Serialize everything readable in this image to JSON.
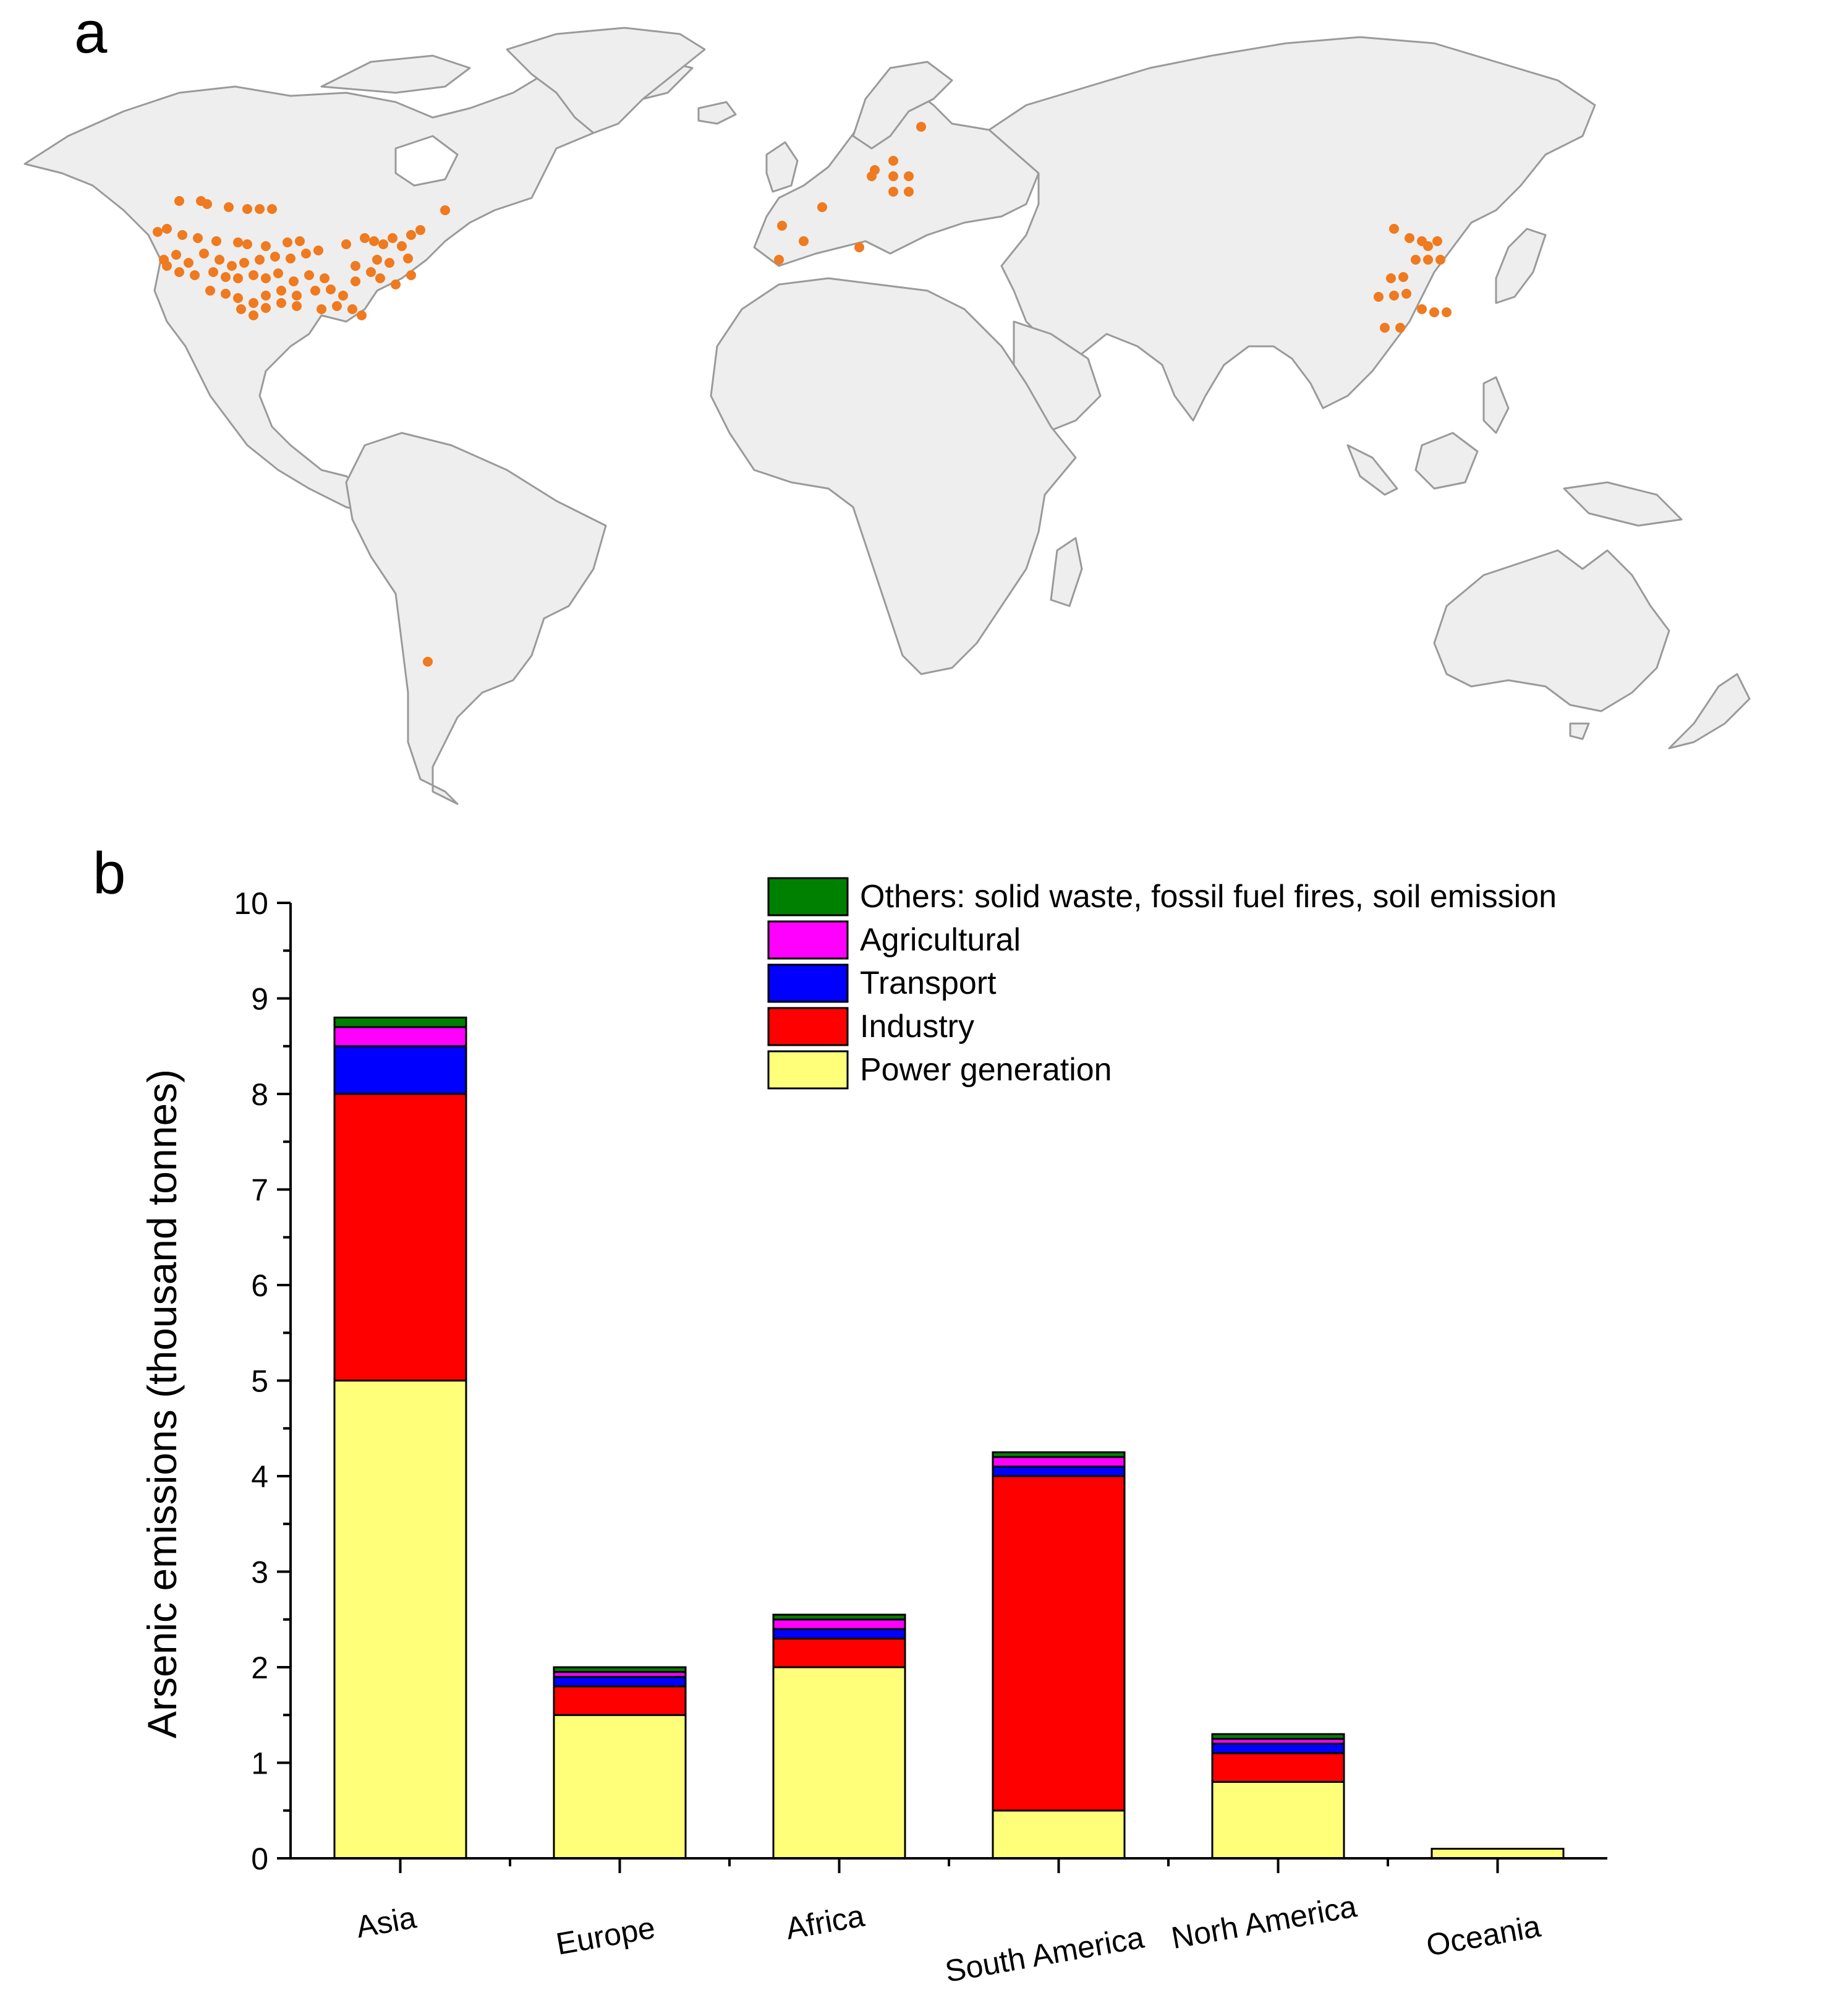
{
  "panels": {
    "a": "a",
    "b": "b"
  },
  "map": {
    "land_color": "#eeeeee",
    "border_color": "#9a9a9a",
    "site_color": "#ef7a1f",
    "site_regions": [
      "North America",
      "Europe",
      "China",
      "South America"
    ]
  },
  "chart_data": {
    "type": "bar",
    "stacked": true,
    "title": "",
    "xlabel": "",
    "ylabel": "Arsenic emissions (thousand tonnes)",
    "ylim": [
      0,
      10
    ],
    "yticks": [
      "0",
      "1",
      "2",
      "3",
      "4",
      "5",
      "6",
      "7",
      "8",
      "9",
      "10"
    ],
    "categories": [
      "Asia",
      "Europe",
      "Africa",
      "South America",
      "Norh America",
      "Oceania"
    ],
    "series": [
      {
        "name": "Power generation",
        "color": "#ffff7a",
        "values": [
          5.0,
          1.5,
          2.0,
          0.5,
          0.8,
          0.1
        ]
      },
      {
        "name": "Industry",
        "color": "#ff0000",
        "values": [
          3.0,
          0.3,
          0.3,
          3.5,
          0.3,
          0.0
        ]
      },
      {
        "name": "Transport",
        "color": "#0000ff",
        "values": [
          0.5,
          0.1,
          0.1,
          0.1,
          0.1,
          0.0
        ]
      },
      {
        "name": "Agricultural",
        "color": "#ff00ff",
        "values": [
          0.2,
          0.05,
          0.1,
          0.1,
          0.05,
          0.0
        ]
      },
      {
        "name": "Others: solid waste, fossil fuel fires, soil emission",
        "color": "#008000",
        "values": [
          0.1,
          0.05,
          0.05,
          0.05,
          0.05,
          0.0
        ]
      }
    ],
    "legend_order": [
      "Others: solid waste, fossil fuel fires, soil emission",
      "Agricultural",
      "Transport",
      "Industry",
      "Power generation"
    ],
    "legend_position": "top-right",
    "grid": false
  }
}
